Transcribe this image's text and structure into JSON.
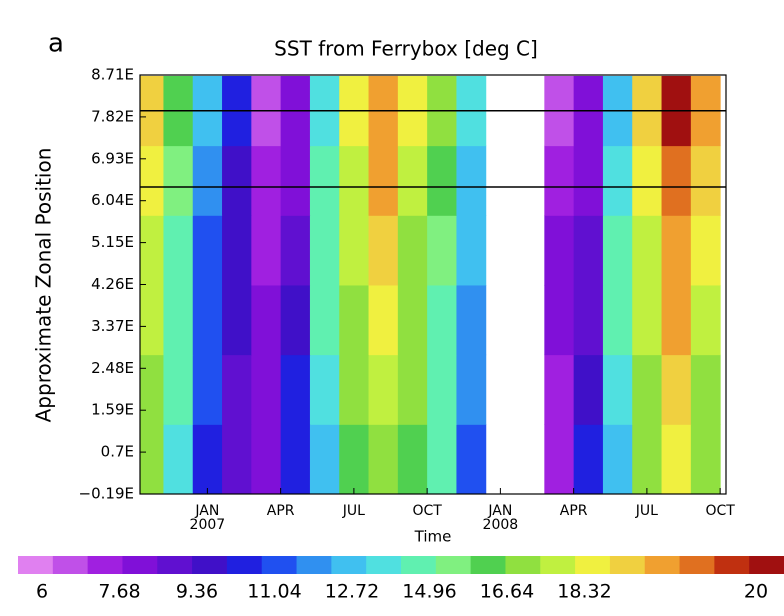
{
  "chart_data": {
    "type": "heatmap",
    "panel_label": "a",
    "title": "SST from Ferrybox [deg C]",
    "x_label": "Time",
    "y_label": "Approximate Zonal Position",
    "xlim": [
      2006.77,
      2008.77
    ],
    "xticks": [
      {
        "value": 2007.0,
        "label": "JAN\n2007"
      },
      {
        "value": 2007.25,
        "label": "APR"
      },
      {
        "value": 2007.5,
        "label": "JUL"
      },
      {
        "value": 2007.75,
        "label": "OCT"
      },
      {
        "value": 2008.0,
        "label": "JAN\n2008"
      },
      {
        "value": 2008.25,
        "label": "APR"
      },
      {
        "value": 2008.5,
        "label": "JUL"
      },
      {
        "value": 2008.75,
        "label": "OCT"
      }
    ],
    "ylim": [
      -0.19,
      8.71
    ],
    "yticks": [
      {
        "value": 8.71,
        "label": "8.71E"
      },
      {
        "value": 7.82,
        "label": "7.82E"
      },
      {
        "value": 6.93,
        "label": "6.93E"
      },
      {
        "value": 6.04,
        "label": "6.04E"
      },
      {
        "value": 5.15,
        "label": "5.15E"
      },
      {
        "value": 4.26,
        "label": "4.26E"
      },
      {
        "value": 3.37,
        "label": "3.37E"
      },
      {
        "value": 2.48,
        "label": "2.48E"
      },
      {
        "value": 1.59,
        "label": "1.59E"
      },
      {
        "value": 0.7,
        "label": "0.7E"
      },
      {
        "value": -0.19,
        "label": "−0.19E"
      }
    ],
    "hlines": [
      7.95,
      6.33
    ],
    "x": [
      2006.8,
      2006.9,
      2007.0,
      2007.1,
      2007.2,
      2007.3,
      2007.4,
      2007.5,
      2007.6,
      2007.7,
      2007.8,
      2007.9,
      2008.0,
      2008.1,
      2008.2,
      2008.3,
      2008.4,
      2008.5,
      2008.6,
      2008.7
    ],
    "y": [
      0.55,
      2.03,
      3.51,
      4.99,
      6.47,
      7.95
    ],
    "z": [
      [
        15,
        12.5,
        10,
        9,
        8.5,
        10,
        12,
        14.5,
        15.5,
        14.5,
        13,
        11,
        null,
        null,
        7.5,
        10,
        12,
        15,
        16.5,
        15
      ],
      [
        15.5,
        13,
        10.5,
        9,
        8.5,
        10,
        12.5,
        15,
        16,
        15,
        13.5,
        11.5,
        null,
        null,
        7.8,
        9.5,
        12.5,
        15.5,
        17,
        15.5
      ],
      [
        16,
        13,
        11,
        9.2,
        8,
        9.5,
        13,
        15.5,
        16.5,
        15,
        13.5,
        11.5,
        null,
        null,
        8,
        9,
        13,
        16,
        17.5,
        16
      ],
      [
        16,
        13.5,
        11,
        9.5,
        7.8,
        9,
        13.5,
        16,
        17,
        15.5,
        14,
        12,
        null,
        null,
        8,
        8.8,
        13,
        16,
        18,
        16.5
      ],
      [
        16.5,
        14,
        11.5,
        9.5,
        7.5,
        8.5,
        13,
        16,
        17.5,
        16,
        14.5,
        12,
        null,
        null,
        7.5,
        8.5,
        12.5,
        16.5,
        18.5,
        17
      ],
      [
        17,
        14.5,
        12,
        10,
        7.2,
        8,
        12.5,
        16.5,
        18,
        16.5,
        15,
        12.5,
        null,
        null,
        7,
        8.5,
        12,
        17,
        19.5,
        17.5
      ]
    ],
    "colorbar": {
      "colors": [
        "#e080f0",
        "#c050e8",
        "#a020e0",
        "#8010d8",
        "#6010d0",
        "#4010c8",
        "#2020e0",
        "#2050f0",
        "#3090f0",
        "#40c0f0",
        "#50e0e0",
        "#60f0b0",
        "#80f080",
        "#50d050",
        "#90e040",
        "#c0f040",
        "#f0f040",
        "#f0d040",
        "#f0a030",
        "#e07020",
        "#c03010",
        "#a01010"
      ],
      "ticks": [
        6,
        7.68,
        9.36,
        11.04,
        12.72,
        14.96,
        16.64,
        18.32,
        20
      ]
    }
  }
}
